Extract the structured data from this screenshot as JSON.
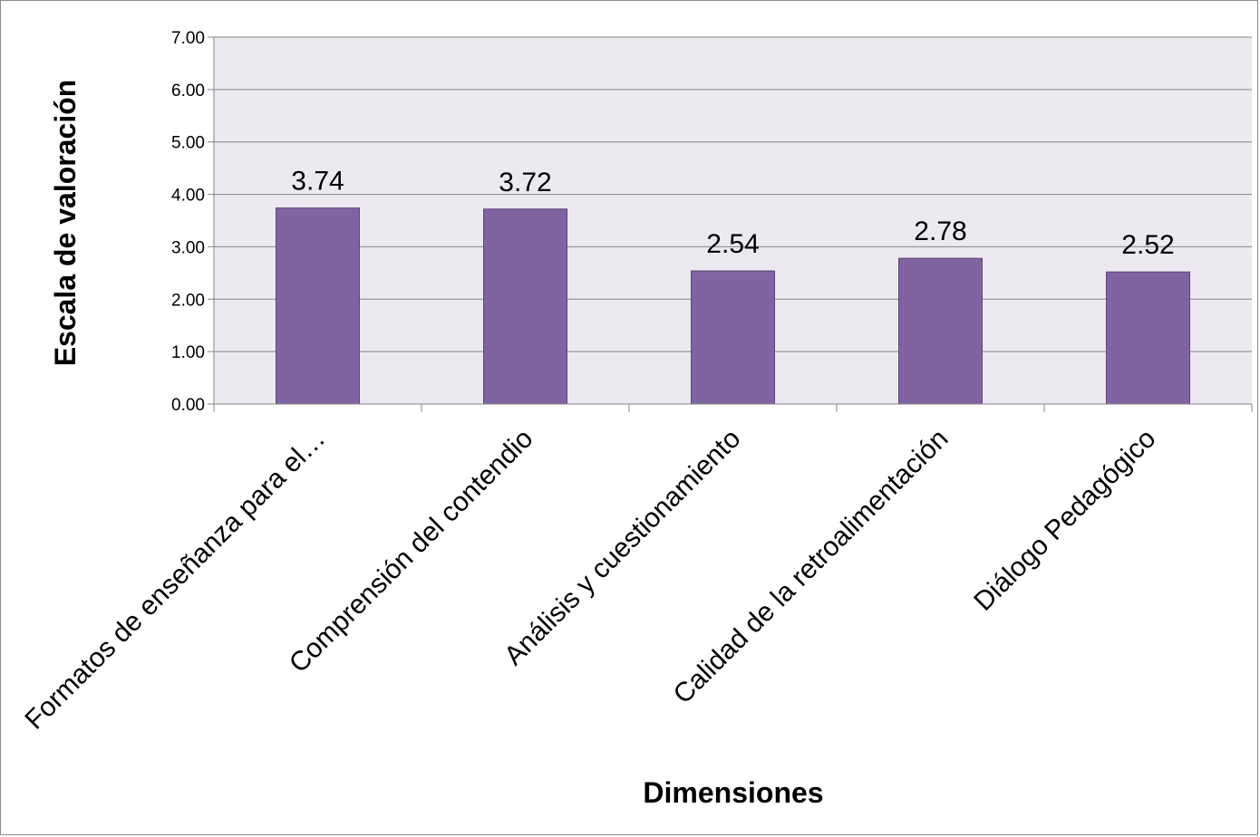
{
  "chart_data": {
    "type": "bar",
    "categories": [
      "Formatos de enseñanza para el…",
      "Comprensión del contendio",
      "Análisis y cuestionamiento",
      "Calidad de la retroalimentación",
      "Diálogo Pedagógico"
    ],
    "values": [
      3.74,
      3.72,
      2.54,
      2.78,
      2.52
    ],
    "data_labels": [
      "3.74",
      "3.72",
      "2.54",
      "2.78",
      "2.52"
    ],
    "xlabel": "Dimensiones",
    "ylabel": "Escala de valoración",
    "ylim": [
      0,
      7
    ],
    "yticks": [
      "0.00",
      "1.00",
      "2.00",
      "3.00",
      "4.00",
      "5.00",
      "6.00",
      "7.00"
    ],
    "grid": true,
    "legend": "none",
    "colors": {
      "bar_fill": "#8064a2",
      "bar_stroke": "#5c4776",
      "plot_background": "#ece9f0",
      "gridline": "#868686"
    }
  }
}
